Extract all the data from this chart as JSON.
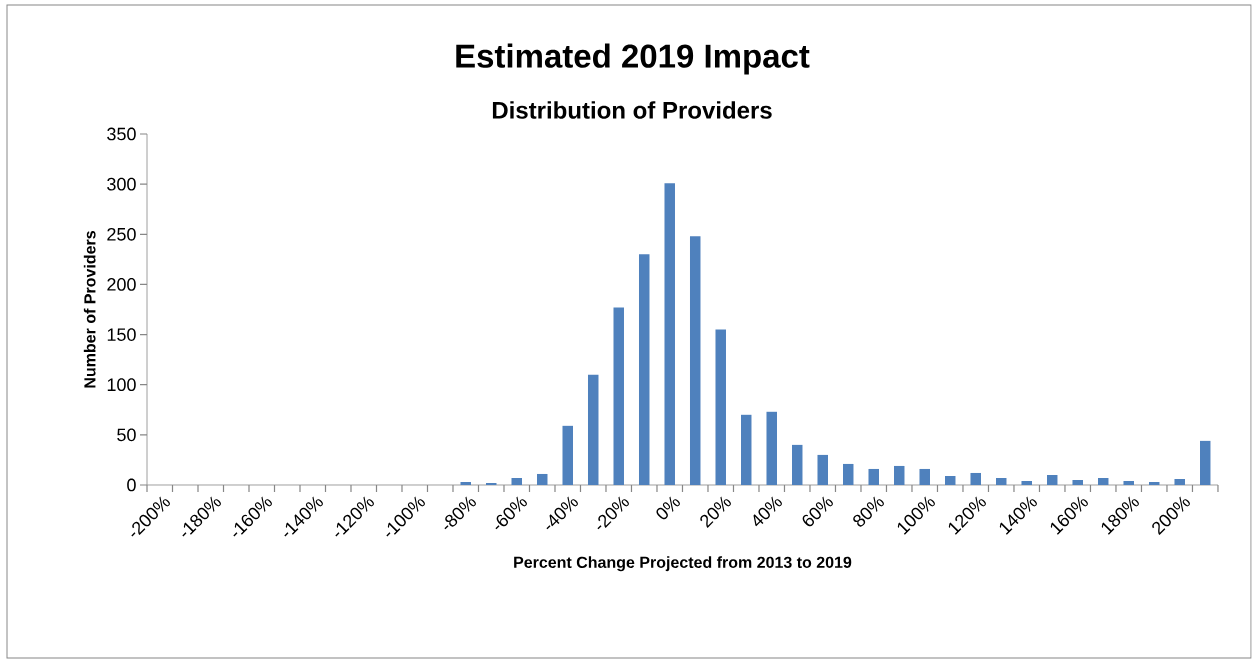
{
  "chart_data": {
    "type": "bar",
    "title": "Estimated 2019 Impact",
    "subtitle": "Distribution of Providers",
    "xlabel": "Percent Change Projected from 2013 to 2019",
    "ylabel": "Number of Providers",
    "categories": [
      "-200%",
      null,
      "-180%",
      null,
      "-160%",
      null,
      "-140%",
      null,
      "-120%",
      null,
      "-100%",
      null,
      "-80%",
      null,
      "-60%",
      null,
      "-40%",
      null,
      "-20%",
      null,
      "0%",
      null,
      "20%",
      null,
      "40%",
      null,
      "60%",
      null,
      "80%",
      null,
      "100%",
      null,
      "120%",
      null,
      "140%",
      null,
      "160%",
      null,
      "180%",
      null,
      "200%",
      null
    ],
    "values": [
      0,
      0,
      0,
      0,
      0,
      0,
      0,
      0,
      0,
      0,
      0,
      0,
      3,
      2,
      7,
      11,
      59,
      110,
      177,
      230,
      301,
      248,
      155,
      70,
      73,
      40,
      30,
      21,
      16,
      19,
      16,
      9,
      12,
      7,
      4,
      10,
      5,
      7,
      4,
      3,
      6,
      44
    ],
    "color": "#4f81bd",
    "ylim": [
      0,
      350
    ],
    "yticks": [
      0,
      50,
      100,
      150,
      200,
      250,
      300,
      350
    ]
  }
}
